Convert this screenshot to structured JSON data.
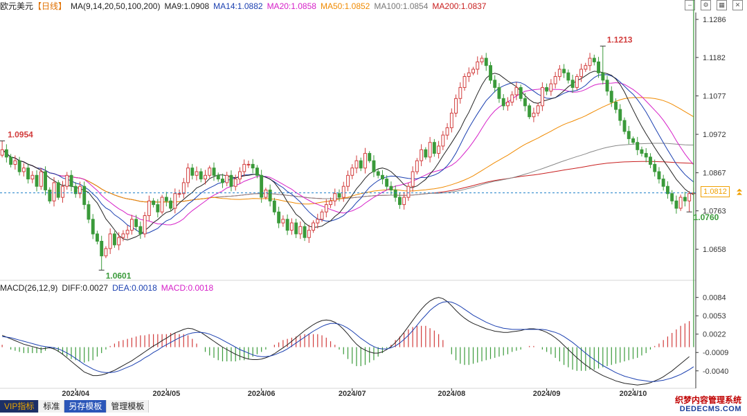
{
  "header": {
    "symbol": "欧元美元",
    "period": "【日线】",
    "ma_params": "MA(9,14,20,50,100,200)",
    "items": [
      {
        "label": "MA9:1.0908",
        "color": "#222222"
      },
      {
        "label": "MA14:1.0882",
        "color": "#1a3fb0"
      },
      {
        "label": "MA20:1.0858",
        "color": "#d620c8"
      },
      {
        "label": "MA50:1.0852",
        "color": "#f08a00"
      },
      {
        "label": "MA100:1.0854",
        "color": "#777777"
      },
      {
        "label": "MA200:1.0837",
        "color": "#c81e1e"
      }
    ]
  },
  "macd_header": {
    "title": "MACD(26,12,9)",
    "items": [
      {
        "label": "DIFF:0.0027",
        "color": "#222222"
      },
      {
        "label": "DEA:0.0018",
        "color": "#1a3fb0"
      },
      {
        "label": "MACD:0.0018",
        "color": "#d620c8"
      }
    ]
  },
  "toolbar": [
    "VIP指标",
    "标准",
    "另存模板",
    "管理模板"
  ],
  "last_price_label": "1.0812",
  "watermark": {
    "line1": "织梦内容管理系统",
    "line2": "DEDECMS.COM"
  },
  "colors": {
    "up": "#d23c3c",
    "down": "#3a9a3a",
    "grid": "#ececec",
    "axis": "#333333",
    "last_line": "#1a7fc8"
  },
  "chart_data": {
    "type": "candlestick",
    "ylim": [
      1.0575,
      1.1305
    ],
    "y_ticks": [
      1.1286,
      1.1182,
      1.1077,
      1.0972,
      1.0867,
      1.0763,
      1.0658
    ],
    "x_labels": [
      {
        "label": "2024/04",
        "index": 17
      },
      {
        "label": "2024/05",
        "index": 38
      },
      {
        "label": "2024/06",
        "index": 60
      },
      {
        "label": "2024/07",
        "index": 81
      },
      {
        "label": "2024/08",
        "index": 104
      },
      {
        "label": "2024/09",
        "index": 126
      },
      {
        "label": "2024/10",
        "index": 146
      }
    ],
    "annotations": [
      {
        "label": "1.0954",
        "value": 1.0954,
        "kind": "high",
        "index": 0
      },
      {
        "label": "1.0601",
        "value": 1.0601,
        "kind": "low",
        "index": 23
      },
      {
        "label": "1.1213",
        "value": 1.1213,
        "kind": "high",
        "index": 139
      },
      {
        "label": "1.0760",
        "value": 1.076,
        "kind": "low",
        "index": 159
      }
    ],
    "last_price": 1.0812,
    "closes": [
      1.093,
      1.091,
      1.089,
      1.09,
      1.087,
      1.088,
      1.085,
      1.086,
      1.083,
      1.087,
      1.082,
      1.079,
      1.084,
      1.08,
      1.083,
      1.086,
      1.083,
      1.081,
      1.083,
      1.078,
      1.074,
      1.07,
      1.068,
      1.064,
      1.066,
      1.07,
      1.067,
      1.069,
      1.07,
      1.071,
      1.074,
      1.072,
      1.07,
      1.075,
      1.079,
      1.078,
      1.076,
      1.08,
      1.079,
      1.077,
      1.081,
      1.081,
      1.084,
      1.088,
      1.086,
      1.087,
      1.085,
      1.086,
      1.088,
      1.086,
      1.085,
      1.084,
      1.086,
      1.083,
      1.085,
      1.087,
      1.089,
      1.089,
      1.088,
      1.086,
      1.08,
      1.082,
      1.079,
      1.076,
      1.073,
      1.074,
      1.071,
      1.073,
      1.07,
      1.072,
      1.069,
      1.071,
      1.073,
      1.074,
      1.076,
      1.078,
      1.079,
      1.081,
      1.08,
      1.083,
      1.086,
      1.088,
      1.09,
      1.088,
      1.092,
      1.09,
      1.087,
      1.086,
      1.085,
      1.083,
      1.082,
      1.08,
      1.078,
      1.08,
      1.083,
      1.087,
      1.09,
      1.093,
      1.091,
      1.095,
      1.092,
      1.094,
      1.097,
      1.099,
      1.103,
      1.107,
      1.11,
      1.113,
      1.114,
      1.115,
      1.117,
      1.118,
      1.116,
      1.112,
      1.11,
      1.107,
      1.105,
      1.106,
      1.108,
      1.11,
      1.107,
      1.105,
      1.102,
      1.103,
      1.105,
      1.11,
      1.109,
      1.111,
      1.113,
      1.115,
      1.114,
      1.112,
      1.11,
      1.113,
      1.115,
      1.116,
      1.118,
      1.117,
      1.114,
      1.112,
      1.109,
      1.106,
      1.104,
      1.101,
      1.098,
      1.096,
      1.095,
      1.093,
      1.092,
      1.091,
      1.089,
      1.087,
      1.085,
      1.083,
      1.081,
      1.079,
      1.077,
      1.08,
      1.079,
      1.081,
      1.0812
    ],
    "macd": {
      "y_ticks": [
        0.0084,
        0.0053,
        0.0022,
        -0.0009,
        -0.004
      ],
      "ylim": [
        -0.0066,
        0.0093
      ],
      "diff": [
        0.002,
        0.0017,
        0.0014,
        0.0011,
        0.0008,
        0.0005,
        0.0003,
        0.0001,
        -0.0001,
        -0.0003,
        -0.0002,
        -0.0001,
        -0.0003,
        -0.0007,
        -0.0012,
        -0.0018,
        -0.0024,
        -0.003,
        -0.0036,
        -0.0042,
        -0.0045,
        -0.0048,
        -0.0048,
        -0.0047,
        -0.0045,
        -0.0042,
        -0.0039,
        -0.0035,
        -0.0031,
        -0.0027,
        -0.0023,
        -0.0018,
        -0.0013,
        -0.0008,
        -0.0003,
        0.0002,
        0.0006,
        0.0011,
        0.0015,
        0.002,
        0.0024,
        0.0027,
        0.003,
        0.0032,
        0.0031,
        0.0028,
        0.0025,
        0.002,
        0.0015,
        0.001,
        0.0005,
        0.0,
        -0.0004,
        -0.0008,
        -0.0012,
        -0.0015,
        -0.0018,
        -0.002,
        -0.0021,
        -0.0021,
        -0.002,
        -0.0018,
        -0.0015,
        -0.0011,
        -0.0006,
        -0.0001,
        0.0004,
        0.001,
        0.0016,
        0.0022,
        0.0028,
        0.0033,
        0.0038,
        0.0042,
        0.0045,
        0.0046,
        0.0045,
        0.0042,
        0.0037,
        0.003,
        0.0022,
        0.0013,
        0.0005,
        -0.0001,
        -0.0005,
        -0.0008,
        -0.001,
        -0.001,
        -0.0008,
        -0.0004,
        0.0001,
        0.0008,
        0.0016,
        0.0025,
        0.0035,
        0.0045,
        0.0055,
        0.0064,
        0.0072,
        0.0078,
        0.0082,
        0.0084,
        0.0082,
        0.0077,
        0.007,
        0.0062,
        0.0055,
        0.0049,
        0.0044,
        0.004,
        0.0037,
        0.0034,
        0.0031,
        0.0029,
        0.0027,
        0.0026,
        0.0025,
        0.0025,
        0.0026,
        0.0027,
        0.0028,
        0.003,
        0.0031,
        0.0031,
        0.003,
        0.0028,
        0.0025,
        0.0021,
        0.0016,
        0.001,
        0.0003,
        -0.0004,
        -0.0011,
        -0.0018,
        -0.0024,
        -0.003,
        -0.0035,
        -0.004,
        -0.0044,
        -0.0048,
        -0.0051,
        -0.0054,
        -0.0057,
        -0.0059,
        -0.0061,
        -0.0062,
        -0.0063,
        -0.0064,
        -0.0063,
        -0.0062,
        -0.006,
        -0.0057,
        -0.0054,
        -0.005,
        -0.0045,
        -0.004,
        -0.0034,
        -0.0028,
        -0.0022,
        -0.0016
      ],
      "dea": [
        0.0018,
        0.0017,
        0.0016,
        0.0014,
        0.0012,
        0.001,
        0.0008,
        0.0006,
        0.0004,
        0.0002,
        0.0001,
        0.0,
        -0.0001,
        -0.0003,
        -0.0006,
        -0.001,
        -0.0014,
        -0.0019,
        -0.0024,
        -0.0029,
        -0.0033,
        -0.0037,
        -0.004,
        -0.0042,
        -0.0043,
        -0.0043,
        -0.0042,
        -0.004,
        -0.0037,
        -0.0034,
        -0.0031,
        -0.0027,
        -0.0023,
        -0.0018,
        -0.0014,
        -0.0009,
        -0.0005,
        0.0,
        0.0004,
        0.0008,
        0.0012,
        0.0016,
        0.0019,
        0.0022,
        0.0024,
        0.0025,
        0.0025,
        0.0024,
        0.0022,
        0.0019,
        0.0016,
        0.0012,
        0.0008,
        0.0004,
        0.0,
        -0.0004,
        -0.0007,
        -0.001,
        -0.0013,
        -0.0015,
        -0.0016,
        -0.0016,
        -0.0015,
        -0.0013,
        -0.001,
        -0.0007,
        -0.0003,
        0.0002,
        0.0007,
        0.0012,
        0.0017,
        0.0022,
        0.0027,
        0.0031,
        0.0035,
        0.0038,
        0.004,
        0.004,
        0.0039,
        0.0036,
        0.0032,
        0.0027,
        0.0021,
        0.0015,
        0.001,
        0.0005,
        0.0001,
        -0.0002,
        -0.0003,
        -0.0003,
        -0.0001,
        0.0002,
        0.0007,
        0.0013,
        0.002,
        0.0028,
        0.0037,
        0.0046,
        0.0054,
        0.0062,
        0.0068,
        0.0073,
        0.0076,
        0.0077,
        0.0076,
        0.0073,
        0.0069,
        0.0064,
        0.0059,
        0.0054,
        0.005,
        0.0046,
        0.0042,
        0.0039,
        0.0036,
        0.0034,
        0.0032,
        0.0031,
        0.003,
        0.003,
        0.003,
        0.003,
        0.003,
        0.003,
        0.003,
        0.003,
        0.0029,
        0.0027,
        0.0025,
        0.0022,
        0.0018,
        0.0013,
        0.0008,
        0.0002,
        -0.0004,
        -0.001,
        -0.0016,
        -0.0021,
        -0.0026,
        -0.0031,
        -0.0035,
        -0.0039,
        -0.0043,
        -0.0046,
        -0.0049,
        -0.0051,
        -0.0053,
        -0.0055,
        -0.0056,
        -0.0057,
        -0.0058,
        -0.0058,
        -0.0057,
        -0.0056,
        -0.0054,
        -0.0052,
        -0.0049,
        -0.0046,
        -0.0042,
        -0.0038,
        -0.0033
      ]
    }
  }
}
